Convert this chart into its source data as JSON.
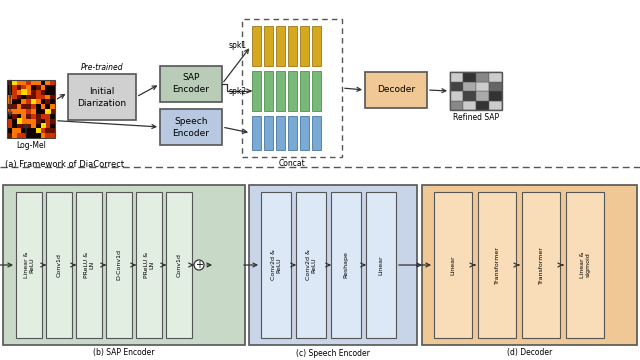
{
  "bg_color": "#ffffff",
  "gray_box": "#d0d0d0",
  "green_sap_box": "#b8ccb8",
  "blue_se_box": "#b8c8e0",
  "peach_dec_box": "#f0c896",
  "green_bg": "#c8d9c8",
  "green_cell": "#e2eee2",
  "blue_bg": "#c8d4e8",
  "blue_cell": "#dce8f5",
  "orange_bg": "#f0c896",
  "orange_cell": "#f8ddb8",
  "yellow_bar": "#d4a820",
  "yellow_bar_edge": "#a07818",
  "green_bar": "#78b878",
  "green_bar_edge": "#509050",
  "blue_bar": "#7aaad4",
  "blue_bar_edge": "#4878a8",
  "edge_col": "#555555",
  "arrow_col": "#333333",
  "sap_blocks": [
    "Linear &\nReLU",
    "Conv1d",
    "PReLU &\nLN",
    "D-Conv1d",
    "PReLU &\nLN",
    "Conv1d"
  ],
  "speech_blocks": [
    "Conv2d &\nReLU",
    "Conv2d &\nReLU",
    "Reshape",
    "Linear"
  ],
  "dec_blocks": [
    "Linear",
    "Transformer",
    "Transformer",
    "Linear &\nsigmoid"
  ],
  "cell_colors": [
    [
      "#888888",
      "#cccccc",
      "#333333",
      "#cccccc"
    ],
    [
      "#cccccc",
      "#444444",
      "#aaaaaa",
      "#333333"
    ],
    [
      "#444444",
      "#aaaaaa",
      "#cccccc",
      "#666666"
    ],
    [
      "#cccccc",
      "#333333",
      "#888888",
      "#cccccc"
    ]
  ]
}
